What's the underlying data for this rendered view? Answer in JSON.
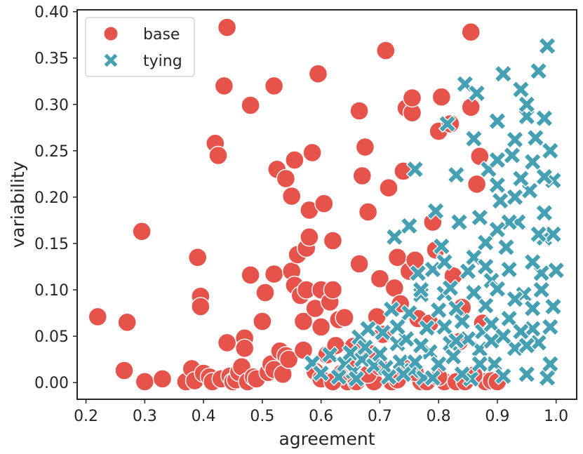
{
  "colors": {
    "base": "#e5534b",
    "tying": "#45a0b4",
    "axes": "#262626"
  },
  "chart_data": {
    "type": "scatter",
    "xlabel": "agreement",
    "ylabel": "variability",
    "xlim": [
      0.185,
      1.035
    ],
    "ylim": [
      -0.018,
      0.402
    ],
    "xticks": [
      0.2,
      0.3,
      0.4,
      0.5,
      0.6,
      0.7,
      0.8,
      0.9,
      1.0
    ],
    "xtick_labels": [
      "0.2",
      "0.3",
      "0.4",
      "0.5",
      "0.6",
      "0.7",
      "0.8",
      "0.9",
      "1.0"
    ],
    "yticks": [
      0.0,
      0.05,
      0.1,
      0.15,
      0.2,
      0.25,
      0.3,
      0.35,
      0.4
    ],
    "ytick_labels": [
      "0.00",
      "0.05",
      "0.10",
      "0.15",
      "0.20",
      "0.25",
      "0.30",
      "0.35",
      "0.40"
    ],
    "grid": false,
    "legend": {
      "position": "top-left"
    },
    "series": [
      {
        "name": "base",
        "marker": "circle",
        "color": "#e5534b",
        "points": [
          [
            0.22,
            0.071
          ],
          [
            0.27,
            0.065
          ],
          [
            0.265,
            0.013
          ],
          [
            0.295,
            0.163
          ],
          [
            0.3,
            0.001
          ],
          [
            0.33,
            0.004
          ],
          [
            0.37,
            0.001
          ],
          [
            0.38,
            0.015
          ],
          [
            0.385,
            0.002
          ],
          [
            0.39,
            0.135
          ],
          [
            0.395,
            0.093
          ],
          [
            0.395,
            0.082
          ],
          [
            0.4,
            0.01
          ],
          [
            0.41,
            0.006
          ],
          [
            0.415,
            0.001
          ],
          [
            0.42,
            0.258
          ],
          [
            0.425,
            0.245
          ],
          [
            0.43,
            0.004
          ],
          [
            0.435,
            0.32
          ],
          [
            0.44,
            0.383
          ],
          [
            0.44,
            0.043
          ],
          [
            0.445,
            0.007
          ],
          [
            0.45,
            0.001
          ],
          [
            0.455,
            0.003
          ],
          [
            0.46,
            0.011
          ],
          [
            0.465,
            0.017
          ],
          [
            0.47,
            0.048
          ],
          [
            0.47,
            0.037
          ],
          [
            0.475,
            0.001
          ],
          [
            0.48,
            0.116
          ],
          [
            0.48,
            0.299
          ],
          [
            0.485,
            0.006
          ],
          [
            0.49,
            0.004
          ],
          [
            0.5,
            0.066
          ],
          [
            0.505,
            0.097
          ],
          [
            0.51,
            0.011
          ],
          [
            0.515,
            0.02
          ],
          [
            0.52,
            0.014
          ],
          [
            0.52,
            0.32
          ],
          [
            0.52,
            0.117
          ],
          [
            0.525,
            0.23
          ],
          [
            0.53,
            0.034
          ],
          [
            0.535,
            0.009
          ],
          [
            0.54,
            0.22
          ],
          [
            0.54,
            0.029
          ],
          [
            0.545,
            0.025
          ],
          [
            0.55,
            0.201
          ],
          [
            0.55,
            0.12
          ],
          [
            0.555,
            0.24
          ],
          [
            0.555,
            0.105
          ],
          [
            0.56,
            0.138
          ],
          [
            0.565,
            0.094
          ],
          [
            0.57,
            0.035
          ],
          [
            0.57,
            0.066
          ],
          [
            0.575,
            0.1
          ],
          [
            0.575,
            0.145
          ],
          [
            0.58,
            0.186
          ],
          [
            0.58,
            0.157
          ],
          [
            0.585,
            0.248
          ],
          [
            0.59,
            0.08
          ],
          [
            0.595,
            0.333
          ],
          [
            0.6,
            0.1
          ],
          [
            0.6,
            0.06
          ],
          [
            0.605,
            0.193
          ],
          [
            0.61,
            0.03
          ],
          [
            0.615,
            0.087
          ],
          [
            0.62,
            0.1
          ],
          [
            0.62,
            0.153
          ],
          [
            0.625,
            0.04
          ],
          [
            0.63,
            0.068
          ],
          [
            0.635,
            0.01
          ],
          [
            0.64,
            0.07
          ],
          [
            0.645,
            0.001
          ],
          [
            0.65,
            0.02
          ],
          [
            0.655,
            0.039
          ],
          [
            0.66,
            0.001
          ],
          [
            0.665,
            0.128
          ],
          [
            0.665,
            0.293
          ],
          [
            0.67,
            0.223
          ],
          [
            0.675,
            0.254
          ],
          [
            0.68,
            0.184
          ],
          [
            0.685,
            0.031
          ],
          [
            0.69,
            0.001
          ],
          [
            0.695,
            0.071
          ],
          [
            0.7,
            0.112
          ],
          [
            0.705,
            0.052
          ],
          [
            0.71,
            0.358
          ],
          [
            0.715,
            0.21
          ],
          [
            0.72,
            0.001
          ],
          [
            0.725,
            0.102
          ],
          [
            0.73,
            0.135
          ],
          [
            0.735,
            0.085
          ],
          [
            0.74,
            0.228
          ],
          [
            0.745,
            0.296
          ],
          [
            0.75,
            0.12
          ],
          [
            0.755,
            0.291
          ],
          [
            0.755,
            0.307
          ],
          [
            0.76,
            0.132
          ],
          [
            0.765,
            0.069
          ],
          [
            0.77,
            0.001
          ],
          [
            0.78,
            0.001
          ],
          [
            0.785,
            0.064
          ],
          [
            0.79,
            0.173
          ],
          [
            0.795,
            0.143
          ],
          [
            0.8,
            0.271
          ],
          [
            0.805,
            0.308
          ],
          [
            0.81,
            0.001
          ],
          [
            0.82,
            0.279
          ],
          [
            0.825,
            0.115
          ],
          [
            0.83,
            0.001
          ],
          [
            0.835,
            0.044
          ],
          [
            0.84,
            0.081
          ],
          [
            0.845,
            0.001
          ],
          [
            0.855,
            0.378
          ],
          [
            0.855,
            0.297
          ],
          [
            0.865,
            0.214
          ],
          [
            0.87,
            0.244
          ],
          [
            0.875,
            0.064
          ],
          [
            0.88,
            0.001
          ],
          [
            0.89,
            0.002
          ],
          [
            0.9,
            0.001
          ],
          [
            0.59,
            0.012
          ],
          [
            0.6,
            0.004
          ],
          [
            0.62,
            0.001
          ],
          [
            0.68,
            0.009
          ],
          [
            0.73,
            0.003
          ],
          [
            0.74,
            0.016
          ],
          [
            0.8,
            0.006
          ],
          [
            0.86,
            0.008
          ],
          [
            0.7,
            0.017
          ],
          [
            0.76,
            0.011
          ]
        ]
      },
      {
        "name": "tying",
        "marker": "x",
        "color": "#45a0b4",
        "points": [
          [
            0.585,
            0.021
          ],
          [
            0.6,
            0.01
          ],
          [
            0.615,
            0.03
          ],
          [
            0.63,
            0.006
          ],
          [
            0.64,
            0.02
          ],
          [
            0.65,
            0.032
          ],
          [
            0.655,
            0.012
          ],
          [
            0.66,
            0.004
          ],
          [
            0.665,
            0.049
          ],
          [
            0.67,
            0.025
          ],
          [
            0.675,
            0.038
          ],
          [
            0.68,
            0.058
          ],
          [
            0.69,
            0.018
          ],
          [
            0.7,
            0.031
          ],
          [
            0.705,
            0.054
          ],
          [
            0.71,
            0.016
          ],
          [
            0.715,
            0.006
          ],
          [
            0.72,
            0.079
          ],
          [
            0.725,
            0.157
          ],
          [
            0.73,
            0.042
          ],
          [
            0.735,
            0.022
          ],
          [
            0.745,
            0.047
          ],
          [
            0.75,
            0.169
          ],
          [
            0.755,
            0.013
          ],
          [
            0.76,
            0.23
          ],
          [
            0.765,
            0.118
          ],
          [
            0.77,
            0.095
          ],
          [
            0.775,
            0.005
          ],
          [
            0.78,
            0.059
          ],
          [
            0.785,
            0.033
          ],
          [
            0.79,
            0.122
          ],
          [
            0.795,
            0.185
          ],
          [
            0.8,
            0.078
          ],
          [
            0.805,
            0.147
          ],
          [
            0.81,
            0.096
          ],
          [
            0.815,
            0.279
          ],
          [
            0.82,
            0.042
          ],
          [
            0.825,
            0.028
          ],
          [
            0.83,
            0.224
          ],
          [
            0.835,
            0.173
          ],
          [
            0.84,
            0.066
          ],
          [
            0.845,
            0.322
          ],
          [
            0.85,
            0.12
          ],
          [
            0.855,
            0.004
          ],
          [
            0.86,
            0.263
          ],
          [
            0.865,
            0.312
          ],
          [
            0.87,
            0.178
          ],
          [
            0.875,
            0.055
          ],
          [
            0.88,
            0.083
          ],
          [
            0.885,
            0.23
          ],
          [
            0.89,
            0.11
          ],
          [
            0.895,
            0.02
          ],
          [
            0.9,
            0.282
          ],
          [
            0.905,
            0.196
          ],
          [
            0.91,
            0.333
          ],
          [
            0.915,
            0.146
          ],
          [
            0.92,
            0.069
          ],
          [
            0.925,
            0.245
          ],
          [
            0.93,
            0.037
          ],
          [
            0.935,
            0.173
          ],
          [
            0.94,
            0.316
          ],
          [
            0.945,
            0.095
          ],
          [
            0.95,
            0.287
          ],
          [
            0.955,
            0.207
          ],
          [
            0.96,
            0.058
          ],
          [
            0.965,
            0.264
          ],
          [
            0.97,
            0.336
          ],
          [
            0.975,
            0.118
          ],
          [
            0.98,
            0.183
          ],
          [
            0.985,
            0.363
          ],
          [
            0.99,
            0.25
          ],
          [
            0.995,
            0.218
          ],
          [
            1.0,
            0.121
          ],
          [
            0.995,
            0.082
          ],
          [
            0.99,
            0.02
          ],
          [
            0.985,
            0.005
          ],
          [
            0.98,
            0.156
          ],
          [
            0.975,
            0.1
          ],
          [
            0.97,
            0.043
          ],
          [
            0.96,
            0.13
          ],
          [
            0.95,
            0.009
          ],
          [
            0.94,
            0.055
          ],
          [
            0.93,
            0.262
          ],
          [
            0.92,
            0.122
          ],
          [
            0.91,
            0.007
          ],
          [
            0.9,
            0.101
          ],
          [
            0.89,
            0.063
          ],
          [
            0.88,
            0.151
          ],
          [
            0.87,
            0.036
          ],
          [
            0.86,
            0.097
          ],
          [
            0.85,
            0.047
          ],
          [
            0.84,
            0.009
          ],
          [
            0.83,
            0.08
          ],
          [
            0.82,
            0.102
          ],
          [
            0.81,
            0.06
          ],
          [
            0.8,
            0.02
          ],
          [
            0.79,
            0.005
          ],
          [
            0.77,
            0.04
          ],
          [
            0.76,
            0.022
          ],
          [
            0.75,
            0.075
          ],
          [
            0.74,
            0.009
          ],
          [
            0.73,
            0.06
          ],
          [
            0.9,
            0.213
          ],
          [
            0.92,
            0.173
          ],
          [
            0.94,
            0.22
          ],
          [
            0.96,
            0.238
          ],
          [
            0.98,
            0.222
          ],
          [
            0.995,
            0.16
          ],
          [
            0.86,
            0.135
          ],
          [
            0.88,
            0.125
          ],
          [
            0.9,
            0.165
          ],
          [
            0.96,
            0.08
          ],
          [
            0.97,
            0.16
          ],
          [
            0.99,
            0.06
          ],
          [
            0.93,
            0.09
          ],
          [
            0.95,
            0.04
          ],
          [
            0.87,
            0.02
          ],
          [
            0.89,
            0.045
          ],
          [
            0.91,
            0.05
          ],
          [
            0.83,
            0.045
          ],
          [
            0.81,
            0.13
          ],
          [
            0.77,
            0.1
          ],
          [
            0.98,
            0.285
          ],
          [
            0.95,
            0.3
          ],
          [
            0.93,
            0.2
          ],
          [
            0.9,
            0.24
          ]
        ]
      }
    ]
  }
}
